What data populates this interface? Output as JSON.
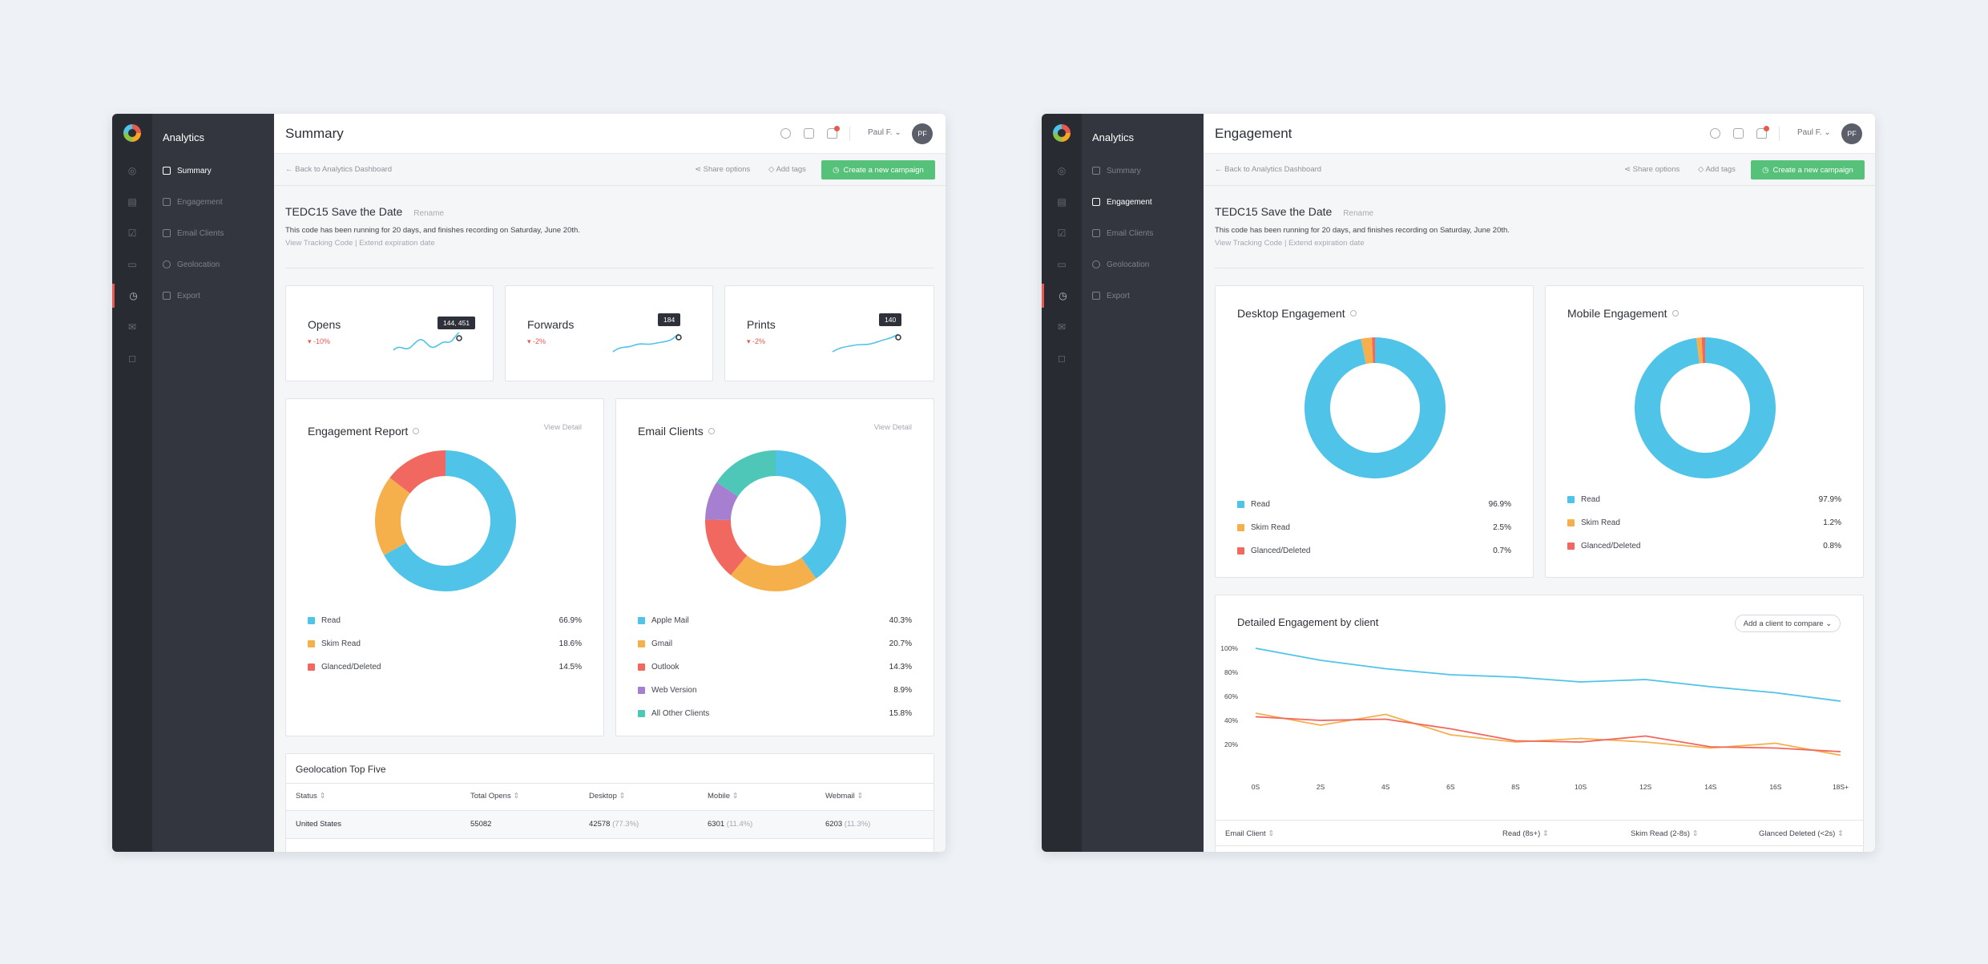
{
  "sidebar": {
    "app_title": "Analytics",
    "items": [
      {
        "label": "Summary",
        "icon": "clipboard-icon"
      },
      {
        "label": "Engagement",
        "icon": "checkbox-icon"
      },
      {
        "label": "Email Clients",
        "icon": "window-icon"
      },
      {
        "label": "Geolocation",
        "icon": "globe-icon"
      },
      {
        "label": "Export",
        "icon": "export-icon"
      }
    ]
  },
  "header": {
    "user_name": "Paul F.",
    "avatar_initials": "PF",
    "back_link": "Back to Analytics Dashboard",
    "share_options": "Share options",
    "add_tags": "Add tags",
    "cta": "Create a new campaign"
  },
  "campaign": {
    "name": "TEDC15 Save the Date",
    "rename": "Rename",
    "description": "This code has been running for 20 days, and finishes recording on Saturday, June 20th.",
    "view_code": "View Tracking Code",
    "separator": "|",
    "extend": "Extend expiration date"
  },
  "summary": {
    "title": "Summary",
    "stats": [
      {
        "name": "Opens",
        "change": "-10%",
        "tooltip": "144, 451"
      },
      {
        "name": "Forwards",
        "change": "-2%",
        "tooltip": "184"
      },
      {
        "name": "Prints",
        "change": "-2%",
        "tooltip": "140"
      }
    ],
    "engagement_report": {
      "title": "Engagement Report",
      "view_detail": "View Detail",
      "items": [
        {
          "label": "Read",
          "value": "66.9%",
          "pct": 66.9,
          "color": "#4fc3e8"
        },
        {
          "label": "Skim Read",
          "value": "18.6%",
          "pct": 18.6,
          "color": "#f5b04b"
        },
        {
          "label": "Glanced/Deleted",
          "value": "14.5%",
          "pct": 14.5,
          "color": "#f0685f"
        }
      ]
    },
    "email_clients": {
      "title": "Email Clients",
      "view_detail": "View Detail",
      "items": [
        {
          "label": "Apple Mail",
          "value": "40.3%",
          "pct": 40.3,
          "color": "#4fc3e8"
        },
        {
          "label": "Gmail",
          "value": "20.7%",
          "pct": 20.7,
          "color": "#f5b04b"
        },
        {
          "label": "Outlook",
          "value": "14.3%",
          "pct": 14.3,
          "color": "#f0685f"
        },
        {
          "label": "Web Version",
          "value": "8.9%",
          "pct": 8.9,
          "color": "#a67fd0"
        },
        {
          "label": "All Other Clients",
          "value": "15.8%",
          "pct": 15.8,
          "color": "#4ec6b8"
        }
      ]
    },
    "geolocation": {
      "title": "Geolocation Top Five",
      "columns": [
        "Status",
        "Total Opens",
        "Desktop",
        "Mobile",
        "Webmail"
      ],
      "row": {
        "status": "United States",
        "total": "55082",
        "desktop": "42578",
        "desktop_pct": "(77.3%)",
        "mobile": "6301",
        "mobile_pct": "(11.4%)",
        "webmail": "6203",
        "webmail_pct": "(11.3%)"
      }
    }
  },
  "engagement": {
    "title": "Engagement",
    "desktop": {
      "title": "Desktop Engagement",
      "items": [
        {
          "label": "Read",
          "value": "96.9%",
          "pct": 96.9,
          "color": "#4fc3e8"
        },
        {
          "label": "Skim Read",
          "value": "2.5%",
          "pct": 2.5,
          "color": "#f5b04b"
        },
        {
          "label": "Glanced/Deleted",
          "value": "0.7%",
          "pct": 0.7,
          "color": "#f0685f"
        }
      ]
    },
    "mobile": {
      "title": "Mobile Engagement",
      "items": [
        {
          "label": "Read",
          "value": "97.9%",
          "pct": 97.9,
          "color": "#4fc3e8"
        },
        {
          "label": "Skim Read",
          "value": "1.2%",
          "pct": 1.2,
          "color": "#f5b04b"
        },
        {
          "label": "Glanced/Deleted",
          "value": "0.8%",
          "pct": 0.8,
          "color": "#f0685f"
        }
      ]
    },
    "detailed": {
      "title": "Detailed Engagement by client",
      "compare": "Add a client to compare",
      "table_columns": [
        "Email Client",
        "Read (8s+)",
        "Skim Read (2-8s)",
        "Glanced Deleted (<2s)"
      ]
    }
  },
  "chart_data": {
    "type": "line",
    "x": [
      "0S",
      "2S",
      "4S",
      "6S",
      "8S",
      "10S",
      "12S",
      "14S",
      "16S",
      "18S+"
    ],
    "yticks": [
      "100%",
      "80%",
      "60%",
      "40%",
      "20%"
    ],
    "ylim": [
      0,
      100
    ],
    "series": [
      {
        "color": "#4fc3e8",
        "values": [
          100,
          90,
          83,
          78,
          76,
          72,
          74,
          68,
          63,
          56
        ]
      },
      {
        "color": "#f5b04b",
        "values": [
          46,
          36,
          45,
          28,
          22,
          25,
          22,
          17,
          21,
          11
        ]
      },
      {
        "color": "#f0685f",
        "values": [
          43,
          40,
          41,
          33,
          23,
          22,
          27,
          18,
          17,
          14
        ]
      }
    ]
  }
}
